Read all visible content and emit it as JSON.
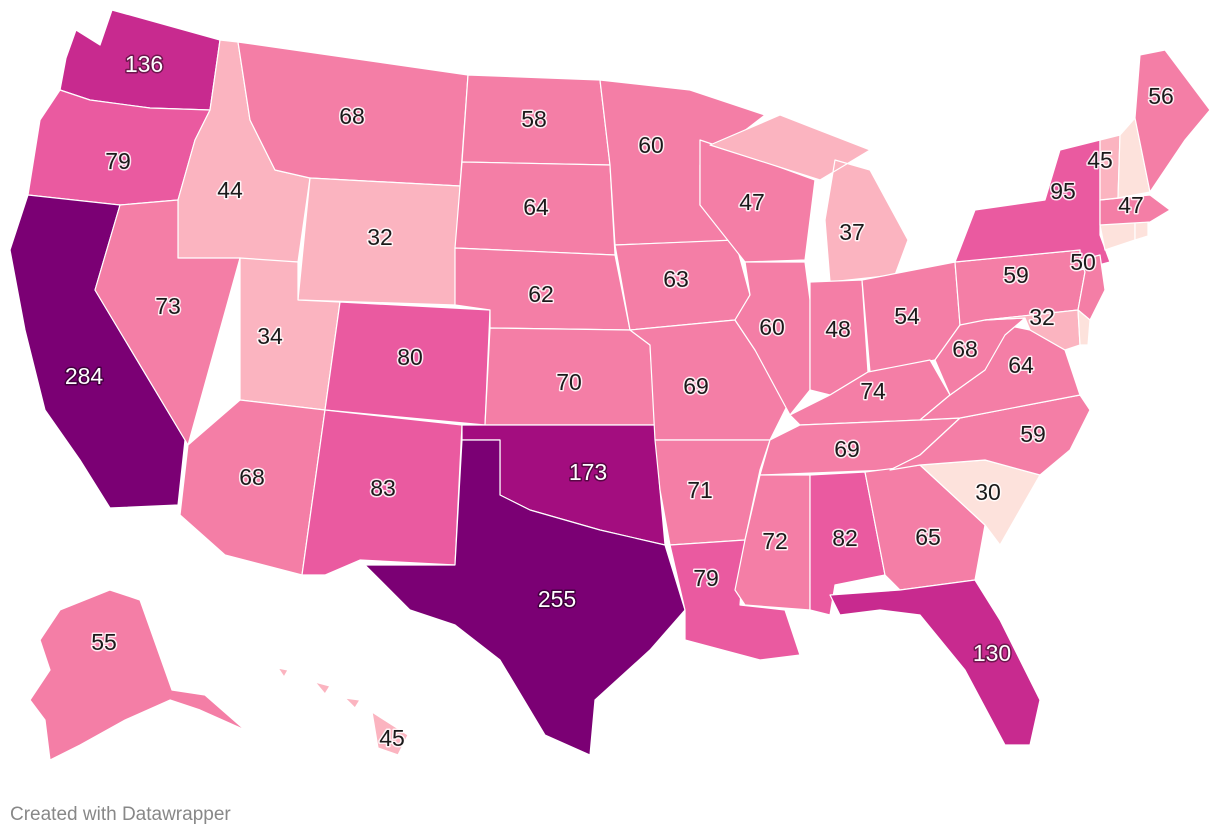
{
  "credit": "Created with Datawrapper",
  "scale": {
    "min": 30,
    "max": 284,
    "colors": [
      "#fde2dc",
      "#fbb4c0",
      "#f47ea6",
      "#ea5aa0",
      "#c82a8f",
      "#a30d7f",
      "#7b0074"
    ]
  },
  "states": [
    {
      "id": "WA",
      "value": 136
    },
    {
      "id": "OR",
      "value": 79
    },
    {
      "id": "CA",
      "value": 284
    },
    {
      "id": "ID",
      "value": 44
    },
    {
      "id": "NV",
      "value": 73
    },
    {
      "id": "MT",
      "value": 68
    },
    {
      "id": "WY",
      "value": 32
    },
    {
      "id": "UT",
      "value": 34
    },
    {
      "id": "AZ",
      "value": 68
    },
    {
      "id": "CO",
      "value": 80
    },
    {
      "id": "NM",
      "value": 83
    },
    {
      "id": "ND",
      "value": 58
    },
    {
      "id": "SD",
      "value": 64
    },
    {
      "id": "NE",
      "value": 62
    },
    {
      "id": "KS",
      "value": 70
    },
    {
      "id": "OK",
      "value": 173
    },
    {
      "id": "TX",
      "value": 255
    },
    {
      "id": "MN",
      "value": 60
    },
    {
      "id": "IA",
      "value": 63
    },
    {
      "id": "MO",
      "value": 69
    },
    {
      "id": "AR",
      "value": 71
    },
    {
      "id": "LA",
      "value": 79
    },
    {
      "id": "WI",
      "value": 47
    },
    {
      "id": "IL",
      "value": 60
    },
    {
      "id": "MI",
      "value": 37
    },
    {
      "id": "IN",
      "value": 48
    },
    {
      "id": "OH",
      "value": 54
    },
    {
      "id": "KY",
      "value": 74
    },
    {
      "id": "TN",
      "value": 69
    },
    {
      "id": "MS",
      "value": 72
    },
    {
      "id": "AL",
      "value": 82
    },
    {
      "id": "GA",
      "value": 65
    },
    {
      "id": "FL",
      "value": 130
    },
    {
      "id": "SC",
      "value": 30
    },
    {
      "id": "NC",
      "value": 59
    },
    {
      "id": "VA",
      "value": 64
    },
    {
      "id": "WV",
      "value": 68
    },
    {
      "id": "PA",
      "value": 59
    },
    {
      "id": "NY",
      "value": 95
    },
    {
      "id": "NJ",
      "value": 50
    },
    {
      "id": "MD",
      "value": 32
    },
    {
      "id": "DE",
      "value": null
    },
    {
      "id": "CT",
      "value": null
    },
    {
      "id": "RI",
      "value": null
    },
    {
      "id": "MA",
      "value": 47
    },
    {
      "id": "VT",
      "value": 45
    },
    {
      "id": "NH",
      "value": null
    },
    {
      "id": "ME",
      "value": 56
    },
    {
      "id": "AK",
      "value": 55
    },
    {
      "id": "HI",
      "value": 45
    }
  ]
}
